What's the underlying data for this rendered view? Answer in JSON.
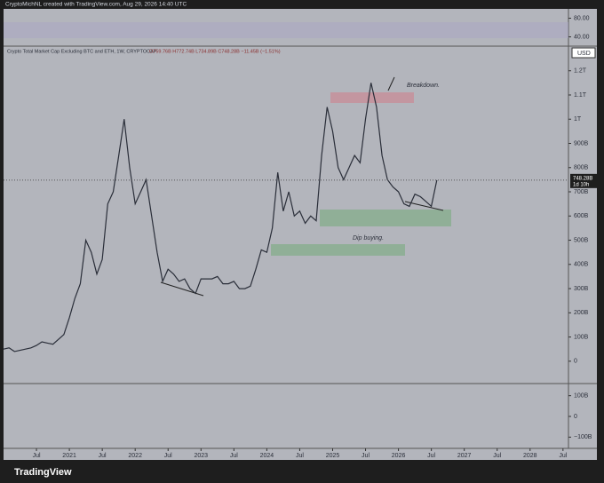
{
  "header": {
    "attribution": "CryptoMichNL created with TradingView.com, Aug 29, 2026 14:40 UTC"
  },
  "chart_data": {
    "type": "line",
    "title": "Crypto Total Market Cap Excluding BTC and ETH, 1W, CRYPTOCAP",
    "ohlc": "O759.76B H772.74B L734.89B C748.28B −11.45B (−1.51%)",
    "currency": "USD",
    "last_price_label": "748.28B",
    "countdown": "1d 10h",
    "annotations": [
      "Breakdown.",
      "Dip buying."
    ],
    "color": "#2a2e39",
    "x": [
      "2020-01",
      "2020-02",
      "2020-03",
      "2020-04",
      "2020-05",
      "2020-06",
      "2020-07",
      "2020-08",
      "2020-09",
      "2020-10",
      "2020-11",
      "2020-12",
      "2021-01",
      "2021-02",
      "2021-03",
      "2021-04",
      "2021-05",
      "2021-06",
      "2021-07",
      "2021-08",
      "2021-09",
      "2021-10",
      "2021-11",
      "2021-12",
      "2022-01",
      "2022-02",
      "2022-03",
      "2022-04",
      "2022-05",
      "2022-06",
      "2022-07",
      "2022-08",
      "2022-09",
      "2022-10",
      "2022-11",
      "2022-12",
      "2023-01",
      "2023-02",
      "2023-03",
      "2023-04",
      "2023-05",
      "2023-06",
      "2023-07",
      "2023-08",
      "2023-09",
      "2023-10",
      "2023-11",
      "2023-12",
      "2024-01",
      "2024-02",
      "2024-03",
      "2024-04",
      "2024-05",
      "2024-06",
      "2024-07",
      "2024-08",
      "2024-09",
      "2024-10",
      "2024-11",
      "2024-12",
      "2025-01",
      "2025-02",
      "2025-03",
      "2025-04",
      "2025-05",
      "2025-06",
      "2025-07",
      "2025-08",
      "2025-09",
      "2025-10",
      "2025-11",
      "2025-12",
      "2026-01",
      "2026-02",
      "2026-03",
      "2026-04",
      "2026-05",
      "2026-06",
      "2026-07",
      "2026-08"
    ],
    "values": [
      50,
      55,
      40,
      45,
      50,
      55,
      65,
      80,
      75,
      70,
      90,
      110,
      180,
      260,
      320,
      500,
      450,
      360,
      420,
      650,
      700,
      850,
      1000,
      800,
      650,
      700,
      750,
      600,
      450,
      330,
      380,
      360,
      330,
      340,
      300,
      280,
      340,
      340,
      340,
      350,
      320,
      320,
      330,
      300,
      300,
      310,
      380,
      460,
      450,
      550,
      780,
      620,
      700,
      600,
      620,
      570,
      600,
      580,
      850,
      1050,
      950,
      800,
      750,
      800,
      850,
      820,
      1000,
      1150,
      1050,
      850,
      750,
      720,
      700,
      650,
      640,
      690,
      680,
      660,
      640,
      748.28
    ],
    "xlim": [
      "2020-01",
      "2028-08"
    ],
    "xticks": [
      {
        "value": "2020-07",
        "label": "Jul"
      },
      {
        "value": "2021-01",
        "label": "2021"
      },
      {
        "value": "2021-07",
        "label": "Jul"
      },
      {
        "value": "2022-01",
        "label": "2022"
      },
      {
        "value": "2022-07",
        "label": "Jul"
      },
      {
        "value": "2023-01",
        "label": "2023"
      },
      {
        "value": "2023-07",
        "label": "Jul"
      },
      {
        "value": "2024-01",
        "label": "2024"
      },
      {
        "value": "2024-07",
        "label": "Jul"
      },
      {
        "value": "2025-01",
        "label": "2025"
      },
      {
        "value": "2025-07",
        "label": "Jul"
      },
      {
        "value": "2026-01",
        "label": "2026"
      },
      {
        "value": "2026-07",
        "label": "Jul"
      },
      {
        "value": "2027-01",
        "label": "2027"
      },
      {
        "value": "2027-07",
        "label": "Jul"
      },
      {
        "value": "2028-01",
        "label": "2028"
      },
      {
        "value": "2028-07",
        "label": "Jul"
      }
    ],
    "ylim": [
      -85,
      1265
    ],
    "yticks": [
      0,
      {
        "value": 100,
        "label": "100B"
      },
      {
        "value": 200,
        "label": "200B"
      },
      {
        "value": 300,
        "label": "300B"
      },
      {
        "value": 400,
        "label": "400B"
      },
      {
        "value": 500,
        "label": "500B"
      },
      {
        "value": 600,
        "label": "600B"
      },
      {
        "value": 700,
        "label": "700B"
      },
      {
        "value": 800,
        "label": "800B"
      },
      {
        "value": 900,
        "label": "900B"
      },
      {
        "value": 1000,
        "label": "1T"
      },
      {
        "value": 1100,
        "label": "1.1T"
      },
      {
        "value": 1200,
        "label": "1.2T"
      }
    ],
    "rsi_panel": {
      "ylim": [
        20,
        100
      ],
      "yticks": [
        {
          "value": 80,
          "label": "80.00"
        },
        {
          "value": 40,
          "label": "40.00"
        }
      ]
    },
    "macd_panel": {
      "ylim": [
        -150,
        150
      ],
      "yticks": [
        {
          "value": 100,
          "label": "100B"
        },
        0,
        {
          "value": -100,
          "label": "−100B"
        }
      ]
    }
  },
  "footer": {
    "brand": "TradingView"
  }
}
